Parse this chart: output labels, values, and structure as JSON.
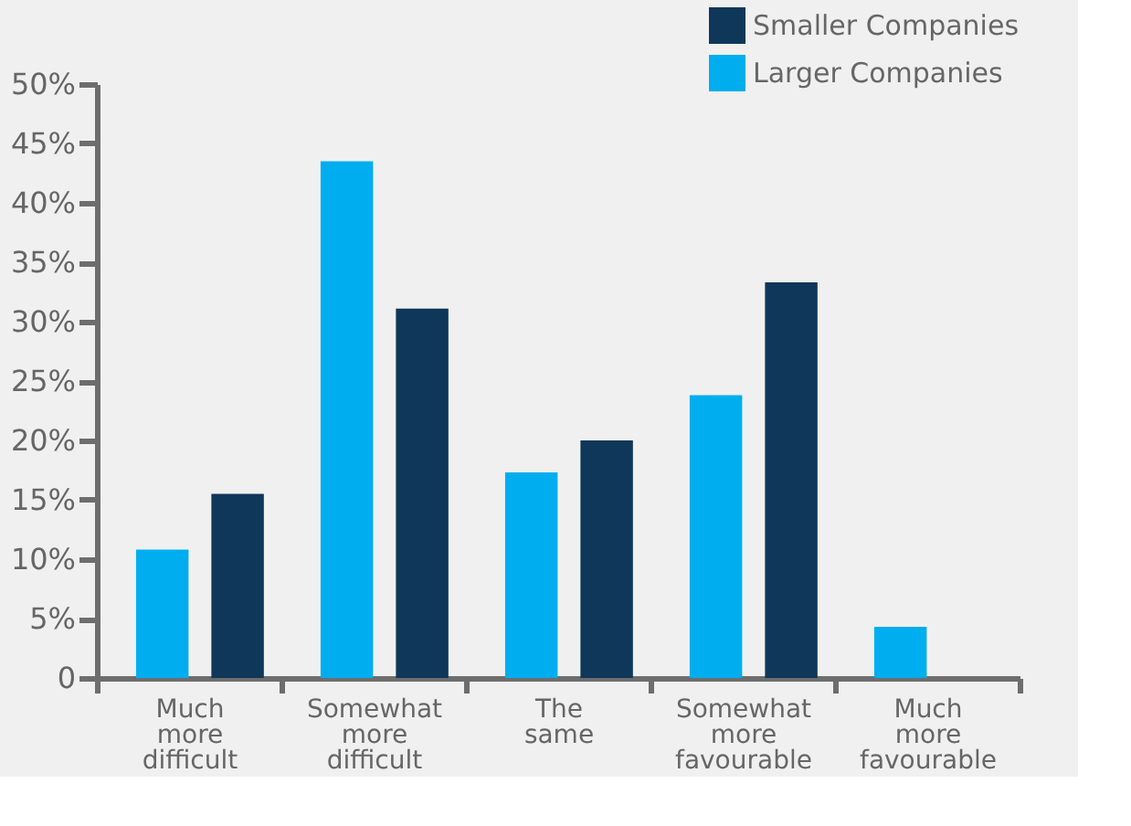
{
  "chart_data": {
    "type": "bar",
    "categories": [
      "Much more difficult",
      "Somewhat more difficult",
      "The same",
      "Somewhat more favourable",
      "Much more favourable"
    ],
    "series": [
      {
        "name": "Larger Companies",
        "color": "#00adef",
        "values": [
          10.8,
          43.5,
          17.3,
          23.8,
          4.3
        ]
      },
      {
        "name": "Smaller Companies",
        "color": "#0f3759",
        "values": [
          15.5,
          31.1,
          20.0,
          33.3,
          null
        ]
      }
    ],
    "ylim": [
      0,
      50
    ],
    "yticks": [
      0,
      {
        "value": 5,
        "label": "5%"
      },
      {
        "value": 10,
        "label": "10%"
      },
      {
        "value": 15,
        "label": "15%"
      },
      {
        "value": 20,
        "label": "20%"
      },
      {
        "value": 25,
        "label": "25%"
      },
      {
        "value": 30,
        "label": "30%"
      },
      {
        "value": 35,
        "label": "35%"
      },
      {
        "value": 40,
        "label": "40%"
      },
      {
        "value": 45,
        "label": "45%"
      },
      {
        "value": 50,
        "label": "50%"
      }
    ],
    "grid": false,
    "legend": "top right"
  }
}
